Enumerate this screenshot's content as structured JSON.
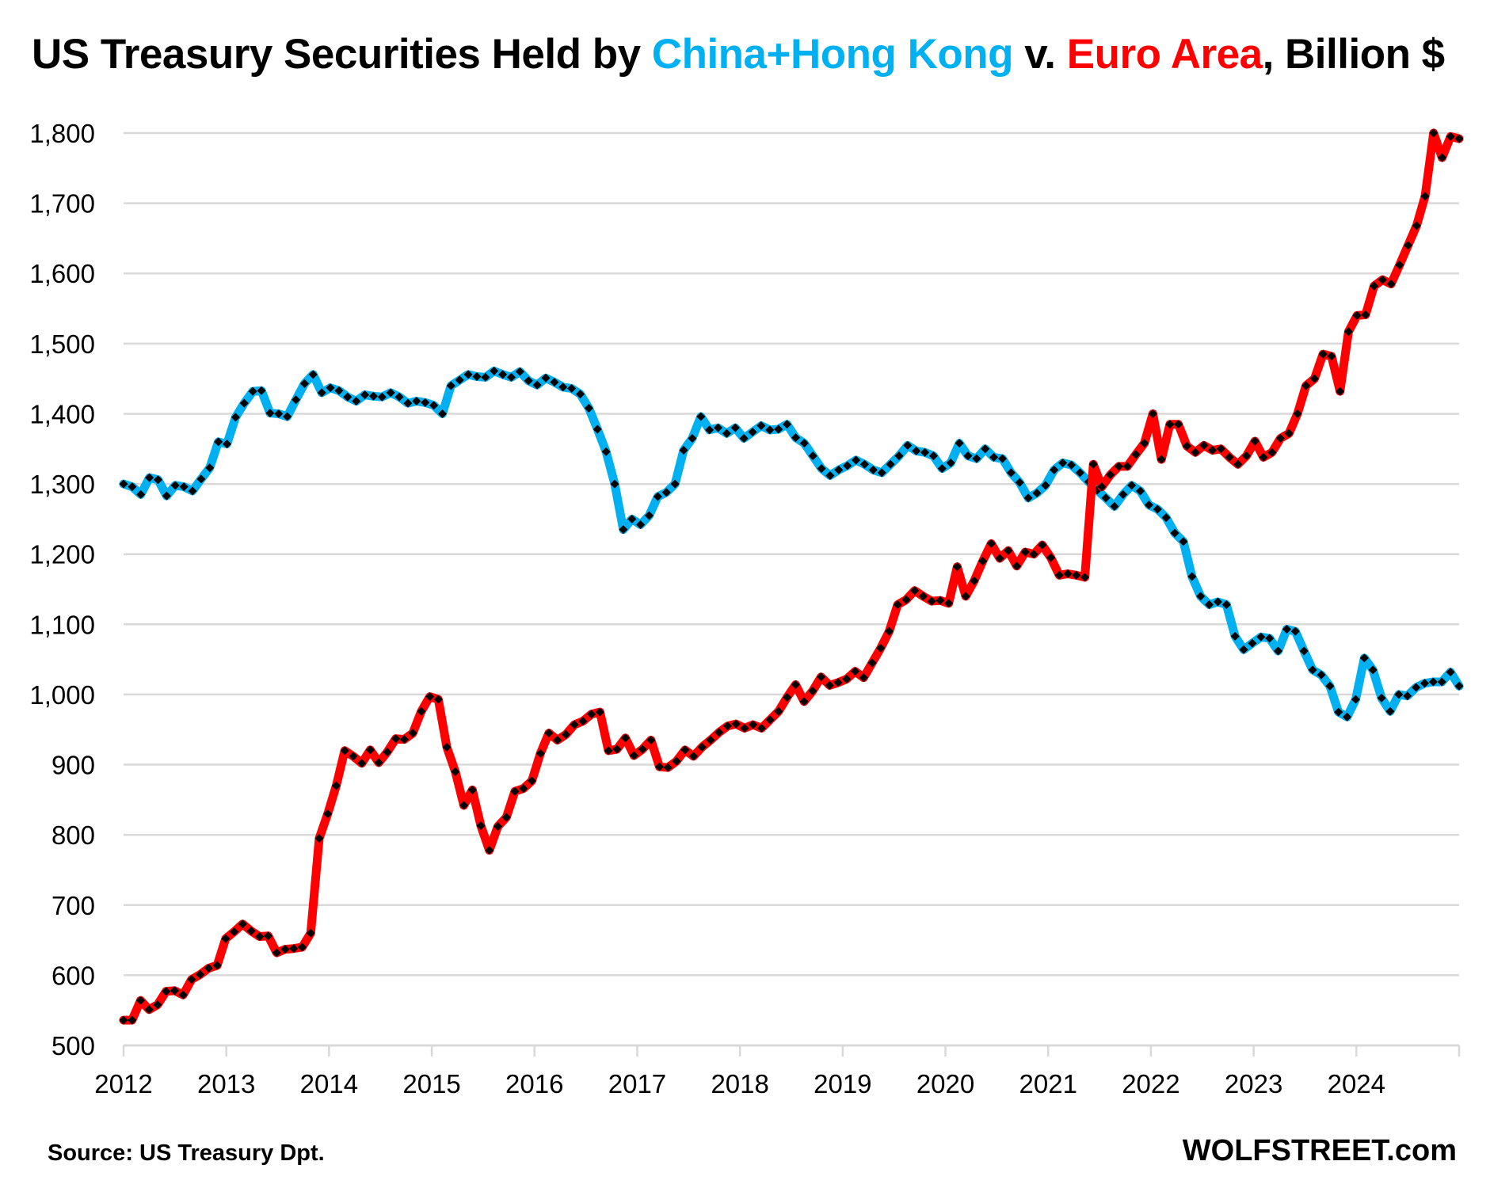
{
  "chart_data": {
    "type": "line",
    "title_parts": [
      {
        "text": "US Treasury Securities Held by ",
        "role": "plain"
      },
      {
        "text": "China+Hong Kong",
        "role": "china"
      },
      {
        "text": " v. ",
        "role": "plain"
      },
      {
        "text": "Euro Area",
        "role": "euro"
      },
      {
        "text": ", Billion $",
        "role": "plain"
      }
    ],
    "title": "US Treasury Securities Held by China+Hong Kong v. Euro Area, Billion $",
    "xlabel": "",
    "ylabel": "",
    "ylim": [
      500,
      1800
    ],
    "yticks": [
      500,
      600,
      700,
      800,
      900,
      1000,
      1100,
      1200,
      1300,
      1400,
      1500,
      1600,
      1700,
      1800
    ],
    "ytick_labels": [
      "500",
      "600",
      "700",
      "800",
      "900",
      "1,000",
      "1,100",
      "1,200",
      "1,300",
      "1,400",
      "1,500",
      "1,600",
      "1,700",
      "1,800"
    ],
    "xlim": [
      "2012-01",
      "2024-12"
    ],
    "xtick_labels": [
      "2012",
      "2013",
      "2014",
      "2015",
      "2016",
      "2017",
      "2018",
      "2019",
      "2020",
      "2021",
      "2022",
      "2023",
      "2024"
    ],
    "grid": "horizontal",
    "legend": "none (series named by colored title text)",
    "frequency": "monthly",
    "series": [
      {
        "name": "China+Hong Kong",
        "color": "#00b0f0",
        "marker_color": "#000000",
        "values": [
          1300,
          1296,
          1285,
          1309,
          1306,
          1283,
          1298,
          1296,
          1290,
          1307,
          1323,
          1360,
          1357,
          1395,
          1415,
          1432,
          1433,
          1401,
          1400,
          1396,
          1420,
          1443,
          1456,
          1430,
          1437,
          1433,
          1424,
          1418,
          1427,
          1425,
          1424,
          1430,
          1424,
          1415,
          1418,
          1416,
          1412,
          1400,
          1440,
          1448,
          1456,
          1453,
          1452,
          1461,
          1456,
          1452,
          1460,
          1447,
          1441,
          1451,
          1445,
          1438,
          1436,
          1428,
          1408,
          1378,
          1346,
          1300,
          1235,
          1250,
          1242,
          1255,
          1282,
          1288,
          1300,
          1348,
          1365,
          1396,
          1377,
          1380,
          1372,
          1380,
          1365,
          1374,
          1383,
          1377,
          1378,
          1385,
          1366,
          1358,
          1340,
          1322,
          1312,
          1320,
          1326,
          1334,
          1328,
          1320,
          1316,
          1328,
          1340,
          1355,
          1347,
          1345,
          1340,
          1322,
          1330,
          1358,
          1340,
          1336,
          1350,
          1338,
          1336,
          1316,
          1302,
          1280,
          1287,
          1298,
          1320,
          1330,
          1327,
          1316,
          1303,
          1291,
          1280,
          1268,
          1285,
          1298,
          1290,
          1270,
          1264,
          1252,
          1230,
          1218,
          1168,
          1140,
          1128,
          1132,
          1128,
          1083,
          1064,
          1073,
          1082,
          1080,
          1062,
          1093,
          1090,
          1062,
          1035,
          1028,
          1012,
          975,
          968,
          993,
          1052,
          1035,
          995,
          976,
          1000,
          998,
          1010,
          1016,
          1018,
          1018,
          1032,
          1012
        ]
      },
      {
        "name": "Euro Area",
        "color": "#ff0000",
        "marker_color": "#000000",
        "values": [
          536,
          536,
          564,
          551,
          558,
          577,
          578,
          572,
          594,
          601,
          610,
          614,
          652,
          662,
          673,
          663,
          655,
          656,
          632,
          637,
          638,
          640,
          660,
          795,
          830,
          870,
          920,
          912,
          902,
          921,
          903,
          918,
          937,
          936,
          945,
          976,
          997,
          993,
          925,
          890,
          842,
          864,
          813,
          778,
          812,
          825,
          862,
          866,
          877,
          916,
          945,
          935,
          943,
          957,
          962,
          972,
          975,
          920,
          922,
          938,
          913,
          922,
          935,
          897,
          896,
          905,
          921,
          912,
          925,
          935,
          946,
          955,
          958,
          952,
          957,
          952,
          964,
          976,
          996,
          1014,
          990,
          1005,
          1025,
          1013,
          1017,
          1022,
          1033,
          1024,
          1045,
          1066,
          1090,
          1128,
          1135,
          1148,
          1140,
          1133,
          1134,
          1130,
          1182,
          1140,
          1162,
          1190,
          1215,
          1194,
          1205,
          1183,
          1203,
          1200,
          1213,
          1195,
          1170,
          1172,
          1170,
          1167,
          1328,
          1296,
          1313,
          1325,
          1325,
          1342,
          1358,
          1400,
          1335,
          1385,
          1385,
          1354,
          1345,
          1355,
          1348,
          1350,
          1338,
          1328,
          1340,
          1361,
          1338,
          1345,
          1365,
          1372,
          1400,
          1440,
          1450,
          1485,
          1482,
          1432,
          1517,
          1540,
          1541,
          1582,
          1591,
          1585,
          1612,
          1640,
          1668,
          1710,
          1800,
          1765,
          1795,
          1792
        ]
      }
    ]
  },
  "footer": {
    "source": "Source: US Treasury  Dpt.",
    "brand": "WOLFSTREET.com"
  }
}
